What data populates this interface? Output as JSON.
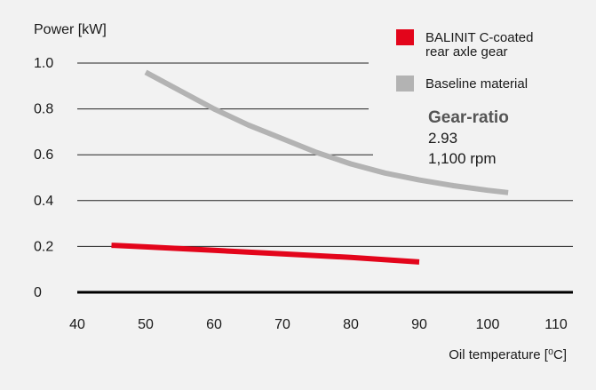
{
  "chart_data": {
    "type": "line",
    "ylabel": "Power [kW]",
    "xlabel": "Oil temperature [⁰C]",
    "x_ticks": [
      40,
      50,
      60,
      70,
      80,
      90,
      100,
      110
    ],
    "y_ticks": [
      "0",
      "0.2",
      "0.4",
      "0.6",
      "0.8",
      "1.0"
    ],
    "y_tick_values": [
      0,
      0.2,
      0.4,
      0.6,
      0.8,
      1.0
    ],
    "xlim": [
      40,
      110
    ],
    "ylim": [
      0,
      1.0
    ],
    "grid": true,
    "legend_position": "top-right",
    "series": [
      {
        "name": "BALINIT C-coated rear axle gear",
        "color": "#e3051b",
        "x": [
          45,
          50,
          60,
          70,
          80,
          90
        ],
        "y": [
          0.205,
          0.198,
          0.183,
          0.168,
          0.152,
          0.132
        ]
      },
      {
        "name": "Baseline material",
        "color": "#b3b3b3",
        "x": [
          50,
          55,
          60,
          65,
          70,
          75,
          80,
          85,
          90,
          95,
          100,
          103
        ],
        "y": [
          0.96,
          0.88,
          0.8,
          0.73,
          0.67,
          0.61,
          0.56,
          0.52,
          0.49,
          0.465,
          0.445,
          0.435
        ]
      }
    ],
    "legend_lines": [
      [
        "BALINIT C-coated",
        "rear axle gear"
      ],
      [
        "Baseline material"
      ]
    ],
    "annotation": {
      "title": "Gear-ratio",
      "lines": [
        "2.93",
        "1,100 rpm"
      ]
    }
  }
}
